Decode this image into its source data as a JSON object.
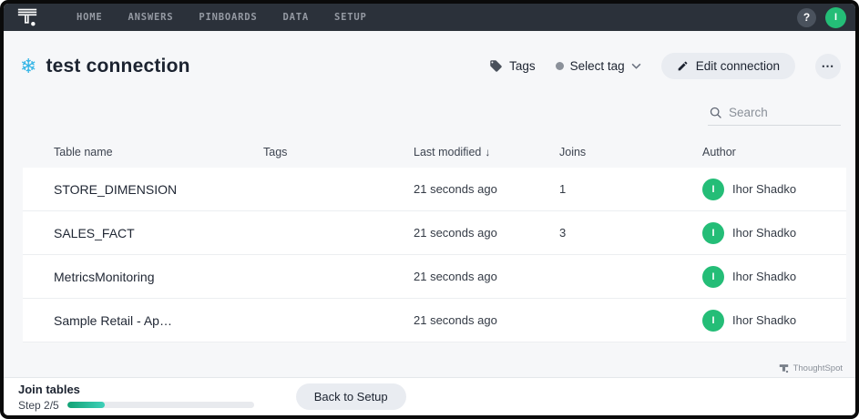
{
  "nav": {
    "items": [
      {
        "label": "HOME"
      },
      {
        "label": "ANSWERS"
      },
      {
        "label": "PINBOARDS"
      },
      {
        "label": "DATA"
      },
      {
        "label": "SETUP"
      }
    ],
    "help_glyph": "?",
    "avatar_initial": "I"
  },
  "header": {
    "title": "test connection",
    "tags_label": "Tags",
    "select_tag_label": "Select tag",
    "edit_button_label": "Edit connection",
    "more_glyph": "⋯"
  },
  "search": {
    "placeholder": "Search"
  },
  "table": {
    "columns": {
      "name": "Table name",
      "tags": "Tags",
      "modified": "Last modified",
      "joins": "Joins",
      "author": "Author"
    },
    "sort_indicator": "↓",
    "rows": [
      {
        "name": "STORE_DIMENSION",
        "tags": "",
        "modified": "21 seconds ago",
        "joins": "1",
        "author": "Ihor Shadko",
        "author_initial": "I"
      },
      {
        "name": "SALES_FACT",
        "tags": "",
        "modified": "21 seconds ago",
        "joins": "3",
        "author": "Ihor Shadko",
        "author_initial": "I"
      },
      {
        "name": "MetricsMonitoring",
        "tags": "",
        "modified": "21 seconds ago",
        "joins": "",
        "author": "Ihor Shadko",
        "author_initial": "I"
      },
      {
        "name": "Sample Retail - Ap…",
        "tags": "",
        "modified": "21 seconds ago",
        "joins": "",
        "author": "Ihor Shadko",
        "author_initial": "I"
      }
    ]
  },
  "watermark": {
    "label": "ThoughtSpot"
  },
  "footer": {
    "title": "Join tables",
    "step_label": "Step 2/5",
    "progress_percent": 20,
    "back_button_label": "Back to Setup"
  },
  "colors": {
    "accent_green": "#24bd77",
    "snowflake_blue": "#32b4e6",
    "nav_background": "#2b313a",
    "progress_gradient_start": "#11a375",
    "progress_gradient_end": "#3ed0b9"
  },
  "icons": {
    "logo": "thoughtspot-logo",
    "snowflake": "❄"
  }
}
